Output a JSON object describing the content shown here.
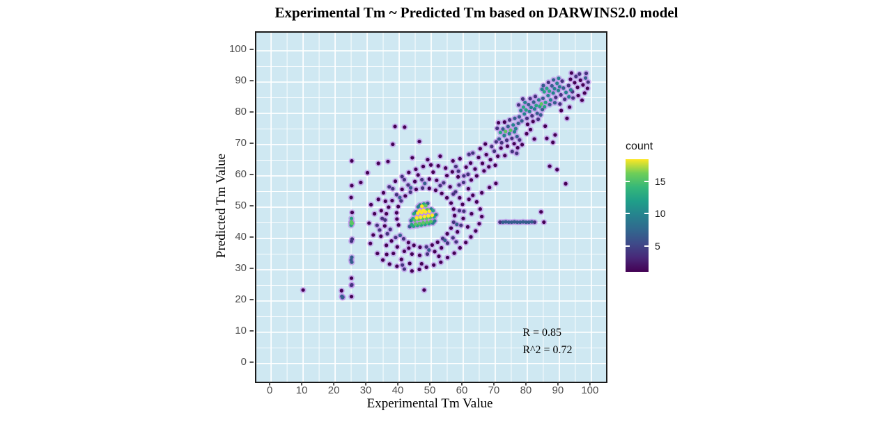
{
  "title": "Experimental Tm ~ Predicted Tm based on DARWINS2.0 model",
  "chart_data": {
    "type": "scatter",
    "subtype": "density-colored scatter (geom_pointdensity style)",
    "title": "Experimental Tm ~ Predicted Tm based on DARWINS2.0 model",
    "xlabel": "Experimental Tm Value",
    "ylabel": "Predicted Tm Value",
    "xlim": [
      -4.6,
      104.6
    ],
    "ylim": [
      -5.8,
      105.8
    ],
    "x_ticks": [
      0,
      10,
      20,
      30,
      40,
      50,
      60,
      70,
      80,
      90,
      100
    ],
    "y_ticks": [
      0,
      10,
      20,
      30,
      40,
      50,
      60,
      70,
      80,
      90,
      100
    ],
    "minor_ticks": [
      5,
      15,
      25,
      35,
      45,
      55,
      65,
      75,
      85,
      95
    ],
    "grid": "white major+minor gridlines on lightblue panel",
    "legend": {
      "title": "count",
      "position": "right",
      "colormap": "viridis",
      "ticks": [
        5,
        10,
        15
      ],
      "range": [
        1,
        18.4
      ]
    },
    "annotations": [
      {
        "text": "R = 0.85",
        "x": 79,
        "y": 9
      },
      {
        "text": "R^2 = 0.72",
        "x": 79,
        "y": 3.5
      }
    ],
    "points": [
      [
        31.2,
        50.8
      ],
      [
        30.6,
        44.9
      ],
      [
        31.9,
        41.1
      ],
      [
        31.0,
        38.4
      ],
      [
        33.2,
        35.2
      ],
      [
        34.9,
        33.1
      ],
      [
        37.0,
        31.8
      ],
      [
        39.3,
        31.1
      ],
      [
        41.6,
        30.2
      ],
      [
        44.0,
        29.6
      ],
      [
        46.3,
        30.1
      ],
      [
        48.5,
        30.8
      ],
      [
        50.8,
        31.5
      ],
      [
        53.0,
        32.4
      ],
      [
        55.1,
        33.9
      ],
      [
        57.2,
        35.3
      ],
      [
        59.0,
        37.0
      ],
      [
        60.8,
        38.7
      ],
      [
        62.4,
        40.5
      ],
      [
        63.9,
        42.4
      ],
      [
        65.0,
        44.7
      ],
      [
        65.8,
        47.0
      ],
      [
        65.3,
        49.4
      ],
      [
        64.2,
        51.7
      ],
      [
        63.0,
        53.8
      ],
      [
        61.6,
        55.9
      ],
      [
        60.1,
        57.9
      ],
      [
        58.4,
        59.7
      ],
      [
        56.6,
        61.3
      ],
      [
        54.5,
        62.5
      ],
      [
        52.2,
        63.2
      ],
      [
        49.9,
        63.5
      ],
      [
        47.5,
        63.0
      ],
      [
        45.2,
        62.1
      ],
      [
        43.0,
        61.1
      ],
      [
        40.9,
        59.8
      ],
      [
        38.8,
        58.3
      ],
      [
        36.9,
        56.5
      ],
      [
        35.1,
        54.6
      ],
      [
        33.5,
        52.5
      ],
      [
        32.3,
        47.9
      ],
      [
        33.1,
        44.2
      ],
      [
        34.3,
        40.7
      ],
      [
        36.0,
        37.8
      ],
      [
        38.2,
        35.2
      ],
      [
        40.7,
        33.3
      ],
      [
        43.3,
        32.0
      ],
      [
        34.4,
        48.9
      ],
      [
        33.9,
        42.7
      ],
      [
        36.1,
        34.9
      ],
      [
        41.0,
        31.5
      ],
      [
        47.0,
        31.9
      ],
      [
        52.4,
        34.3
      ],
      [
        57.8,
        38.9
      ],
      [
        61.4,
        43.7
      ],
      [
        62.6,
        47.9
      ],
      [
        61.8,
        52.5
      ],
      [
        58.7,
        57.1
      ],
      [
        54.9,
        60.1
      ],
      [
        50.6,
        61.2
      ],
      [
        45.9,
        60.3
      ],
      [
        41.6,
        58.8
      ],
      [
        38.0,
        55.9
      ],
      [
        35.7,
        51.9
      ],
      [
        34.7,
        46.4
      ],
      [
        37.2,
        42.9
      ],
      [
        38.9,
        40.3
      ],
      [
        43.0,
        36.9
      ],
      [
        49.3,
        36.3
      ],
      [
        54.3,
        39.4
      ],
      [
        58.0,
        44.5
      ],
      [
        58.8,
        48.9
      ],
      [
        56.9,
        54.2
      ],
      [
        52.8,
        56.9
      ],
      [
        48.0,
        57.6
      ],
      [
        43.6,
        56.2
      ],
      [
        40.2,
        53.1
      ],
      [
        35.5,
        44.0
      ],
      [
        36.3,
        41.5
      ],
      [
        37.6,
        39.2
      ],
      [
        39.4,
        37.3
      ],
      [
        41.6,
        35.9
      ],
      [
        44.0,
        35.0
      ],
      [
        46.4,
        34.6
      ],
      [
        48.8,
        35.0
      ],
      [
        51.1,
        35.8
      ],
      [
        53.2,
        37.0
      ],
      [
        55.1,
        38.5
      ],
      [
        56.8,
        40.2
      ],
      [
        58.2,
        42.1
      ],
      [
        59.3,
        44.2
      ],
      [
        60.0,
        46.4
      ],
      [
        60.2,
        48.7
      ],
      [
        59.8,
        50.9
      ],
      [
        58.9,
        53.0
      ],
      [
        57.6,
        54.9
      ],
      [
        55.9,
        56.5
      ],
      [
        53.9,
        57.8
      ],
      [
        51.7,
        58.6
      ],
      [
        49.4,
        59.0
      ],
      [
        47.1,
        58.8
      ],
      [
        44.9,
        58.2
      ],
      [
        42.8,
        57.1
      ],
      [
        40.9,
        55.7
      ],
      [
        39.2,
        54.0
      ],
      [
        37.8,
        52.1
      ],
      [
        36.7,
        50.0
      ],
      [
        36.0,
        47.9
      ],
      [
        35.6,
        45.9
      ],
      [
        40.3,
        41.0
      ],
      [
        41.4,
        39.9
      ],
      [
        42.9,
        38.7
      ],
      [
        44.6,
        37.8
      ],
      [
        46.5,
        37.2
      ],
      [
        48.5,
        37.3
      ],
      [
        50.3,
        37.9
      ],
      [
        52.0,
        38.8
      ],
      [
        53.6,
        40.0
      ],
      [
        55.0,
        41.5
      ],
      [
        56.2,
        43.3
      ],
      [
        57.0,
        45.2
      ],
      [
        57.3,
        47.3
      ],
      [
        57.0,
        49.4
      ],
      [
        56.2,
        51.3
      ],
      [
        54.9,
        53.0
      ],
      [
        53.3,
        54.4
      ],
      [
        51.4,
        55.4
      ],
      [
        49.4,
        56.0
      ],
      [
        47.3,
        56.1
      ],
      [
        45.3,
        55.7
      ],
      [
        43.5,
        54.8
      ],
      [
        41.9,
        53.6
      ],
      [
        40.6,
        52.0
      ],
      [
        39.7,
        50.2
      ],
      [
        39.2,
        48.2
      ],
      [
        39.3,
        46.2
      ],
      [
        39.8,
        44.3
      ],
      [
        43.3,
        43.8
      ],
      [
        43.9,
        44.4
      ],
      [
        44.5,
        43.9
      ],
      [
        45.1,
        44.6
      ],
      [
        45.7,
        44.1
      ],
      [
        46.3,
        44.8
      ],
      [
        46.9,
        44.3
      ],
      [
        47.5,
        45.0
      ],
      [
        48.1,
        44.5
      ],
      [
        48.7,
        45.2
      ],
      [
        49.3,
        44.7
      ],
      [
        49.9,
        45.4
      ],
      [
        50.5,
        44.9
      ],
      [
        51.1,
        45.6
      ],
      [
        43.7,
        45.7
      ],
      [
        44.3,
        46.3
      ],
      [
        44.9,
        45.9
      ],
      [
        45.5,
        46.6
      ],
      [
        46.1,
        46.1
      ],
      [
        46.7,
        46.8
      ],
      [
        47.3,
        46.3
      ],
      [
        47.9,
        47.0
      ],
      [
        48.5,
        46.5
      ],
      [
        49.1,
        47.2
      ],
      [
        49.7,
        46.7
      ],
      [
        50.3,
        47.4
      ],
      [
        50.9,
        46.9
      ],
      [
        51.5,
        47.6
      ],
      [
        44.6,
        47.9
      ],
      [
        45.2,
        48.5
      ],
      [
        45.8,
        48.1
      ],
      [
        46.4,
        48.8
      ],
      [
        47.0,
        48.3
      ],
      [
        47.6,
        49.0
      ],
      [
        48.2,
        48.5
      ],
      [
        48.8,
        49.2
      ],
      [
        49.4,
        48.7
      ],
      [
        50.0,
        49.4
      ],
      [
        50.6,
        48.9
      ],
      [
        45.9,
        50.1
      ],
      [
        46.5,
        50.7
      ],
      [
        47.1,
        50.3
      ],
      [
        47.7,
        51.0
      ],
      [
        48.3,
        50.5
      ],
      [
        48.9,
        51.2
      ],
      [
        60.9,
        62.8
      ],
      [
        62.3,
        64.1
      ],
      [
        63.7,
        62.2
      ],
      [
        64.8,
        65.9
      ],
      [
        66.0,
        64.0
      ],
      [
        67.2,
        66.8
      ],
      [
        68.5,
        65.2
      ],
      [
        69.7,
        67.9
      ],
      [
        70.8,
        66.3
      ],
      [
        65.3,
        68.7
      ],
      [
        66.9,
        70.2
      ],
      [
        68.9,
        69.4
      ],
      [
        70.3,
        70.9
      ],
      [
        71.8,
        68.9
      ],
      [
        63.0,
        67.3
      ],
      [
        61.5,
        60.5
      ],
      [
        64.2,
        60.0
      ],
      [
        66.5,
        61.6
      ],
      [
        68.0,
        62.9
      ],
      [
        70.0,
        63.4
      ],
      [
        71.2,
        71.8
      ],
      [
        72.0,
        70.6
      ],
      [
        72.8,
        72.9
      ],
      [
        73.6,
        71.4
      ],
      [
        74.4,
        73.5
      ],
      [
        75.2,
        72.0
      ],
      [
        76.0,
        74.1
      ],
      [
        76.8,
        72.6
      ],
      [
        71.6,
        73.9
      ],
      [
        72.4,
        75.0
      ],
      [
        73.2,
        74.2
      ],
      [
        74.0,
        75.8
      ],
      [
        74.8,
        74.6
      ],
      [
        75.6,
        76.3
      ],
      [
        76.4,
        75.1
      ],
      [
        77.2,
        76.8
      ],
      [
        72.9,
        77.2
      ],
      [
        74.5,
        77.9
      ],
      [
        76.1,
        78.4
      ],
      [
        70.6,
        75.2
      ],
      [
        71.0,
        77.0
      ],
      [
        73.8,
        69.5
      ],
      [
        75.9,
        70.3
      ],
      [
        77.6,
        71.5
      ],
      [
        77.0,
        69.0
      ],
      [
        77.5,
        78.9
      ],
      [
        78.3,
        77.6
      ],
      [
        79.1,
        79.8
      ],
      [
        79.9,
        78.4
      ],
      [
        80.7,
        80.6
      ],
      [
        81.5,
        79.2
      ],
      [
        82.3,
        81.4
      ],
      [
        83.1,
        80.0
      ],
      [
        83.9,
        82.2
      ],
      [
        78.0,
        80.9
      ],
      [
        78.8,
        82.0
      ],
      [
        79.6,
        81.1
      ],
      [
        80.4,
        82.8
      ],
      [
        81.2,
        81.9
      ],
      [
        82.0,
        83.6
      ],
      [
        82.8,
        82.5
      ],
      [
        83.6,
        84.3
      ],
      [
        79.3,
        83.5
      ],
      [
        80.9,
        84.7
      ],
      [
        82.5,
        85.4
      ],
      [
        77.3,
        82.7
      ],
      [
        78.6,
        84.6
      ],
      [
        81.8,
        77.4
      ],
      [
        83.4,
        78.1
      ],
      [
        84.2,
        79.5
      ],
      [
        84.7,
        81.2
      ],
      [
        84.4,
        83.0
      ],
      [
        80.1,
        76.5
      ],
      [
        84.9,
        84.8
      ],
      [
        85.7,
        83.5
      ],
      [
        86.5,
        85.7
      ],
      [
        87.3,
        84.3
      ],
      [
        88.1,
        86.5
      ],
      [
        88.9,
        85.1
      ],
      [
        89.7,
        87.3
      ],
      [
        90.5,
        85.9
      ],
      [
        91.3,
        88.1
      ],
      [
        92.1,
        86.7
      ],
      [
        85.3,
        86.9
      ],
      [
        86.1,
        88.0
      ],
      [
        86.9,
        87.1
      ],
      [
        87.7,
        88.8
      ],
      [
        88.5,
        87.9
      ],
      [
        89.3,
        89.6
      ],
      [
        90.1,
        88.5
      ],
      [
        90.9,
        90.3
      ],
      [
        86.6,
        89.9
      ],
      [
        88.2,
        90.7
      ],
      [
        89.8,
        91.2
      ],
      [
        85.0,
        88.9
      ],
      [
        92.9,
        88.9
      ],
      [
        93.6,
        87.5
      ],
      [
        91.7,
        84.5
      ],
      [
        93.0,
        85.3
      ],
      [
        94.1,
        86.9
      ],
      [
        84.6,
        87.7
      ],
      [
        87.0,
        82.8
      ],
      [
        88.6,
        83.4
      ],
      [
        90.2,
        83.0
      ],
      [
        85.4,
        82.1
      ],
      [
        94.8,
        89.8
      ],
      [
        95.7,
        88.3
      ],
      [
        96.6,
        90.6
      ],
      [
        97.4,
        89.1
      ],
      [
        98.2,
        91.3
      ],
      [
        95.2,
        91.8
      ],
      [
        96.3,
        92.6
      ],
      [
        93.5,
        90.9
      ],
      [
        97.9,
        86.5
      ],
      [
        98.8,
        88.0
      ],
      [
        94.3,
        84.9
      ],
      [
        95.9,
        85.7
      ],
      [
        97.1,
        84.2
      ],
      [
        93.8,
        92.9
      ],
      [
        99.0,
        90.0
      ],
      [
        98.4,
        92.8
      ],
      [
        92.4,
        78.4
      ],
      [
        88.7,
        73.1
      ],
      [
        86.1,
        72.0
      ],
      [
        88.0,
        70.7
      ],
      [
        82.2,
        71.8
      ],
      [
        87.0,
        63.1
      ],
      [
        89.3,
        62.0
      ],
      [
        92.0,
        57.5
      ],
      [
        84.3,
        48.5
      ],
      [
        79.8,
        73.5
      ],
      [
        85.6,
        75.9
      ],
      [
        90.6,
        80.9
      ],
      [
        93.2,
        82.0
      ],
      [
        81.0,
        74.8
      ],
      [
        75.3,
        67.8
      ],
      [
        73.0,
        66.5
      ],
      [
        78.4,
        70.0
      ],
      [
        76.7,
        67.2
      ],
      [
        71.5,
        45.2
      ],
      [
        72.4,
        45.2
      ],
      [
        73.3,
        45.3
      ],
      [
        74.2,
        45.2
      ],
      [
        75.1,
        45.2
      ],
      [
        76.0,
        45.3
      ],
      [
        76.9,
        45.2
      ],
      [
        77.8,
        45.2
      ],
      [
        78.7,
        45.3
      ],
      [
        79.6,
        45.2
      ],
      [
        80.5,
        45.2
      ],
      [
        81.4,
        45.3
      ],
      [
        82.3,
        45.2
      ],
      [
        85.2,
        45.2
      ],
      [
        25.2,
        64.8
      ],
      [
        25.2,
        56.9
      ],
      [
        25.0,
        53.1
      ],
      [
        25.3,
        48.3
      ],
      [
        25.1,
        46.4
      ],
      [
        25.2,
        45.1
      ],
      [
        25.0,
        44.2
      ],
      [
        25.3,
        39.8
      ],
      [
        25.1,
        39.1
      ],
      [
        25.2,
        34.0
      ],
      [
        25.0,
        33.1
      ],
      [
        25.2,
        32.4
      ],
      [
        25.1,
        27.3
      ],
      [
        25.2,
        25.2
      ],
      [
        25.1,
        21.4
      ],
      [
        10.0,
        23.5
      ],
      [
        22.0,
        23.3
      ],
      [
        22.4,
        21.2
      ],
      [
        47.8,
        23.5
      ],
      [
        41.7,
        75.6
      ],
      [
        46.3,
        71.0
      ],
      [
        38.7,
        75.8
      ],
      [
        38.0,
        70.1
      ],
      [
        36.5,
        64.6
      ],
      [
        30.1,
        61.0
      ],
      [
        28.0,
        57.9
      ],
      [
        33.5,
        64.0
      ],
      [
        44.1,
        65.8
      ],
      [
        48.9,
        65.2
      ],
      [
        52.8,
        66.3
      ],
      [
        56.8,
        64.8
      ],
      [
        58.5,
        61.5
      ],
      [
        60.2,
        60.0
      ],
      [
        59.0,
        65.5
      ],
      [
        61.8,
        66.9
      ],
      [
        57.7,
        63.0
      ],
      [
        65.8,
        54.6
      ],
      [
        68.2,
        56.3
      ],
      [
        70.2,
        57.6
      ],
      [
        62.5,
        58.7
      ],
      [
        25.0,
        45.0
      ],
      [
        25.3,
        44.8
      ],
      [
        25.1,
        45.3
      ],
      [
        22.1,
        21.5
      ],
      [
        22.3,
        21.1
      ],
      [
        25.1,
        25.0
      ]
    ]
  },
  "styles": {
    "panel_bg": "#cfe8f2",
    "grid_color": "#ffffff",
    "panel_border": "#1a1a1a",
    "tick_color": "#333333",
    "tick_label_color": "#4d4d4d",
    "point_halo": "#b97ce7",
    "viridis_stops": [
      [
        0,
        "#440154"
      ],
      [
        0.125,
        "#482878"
      ],
      [
        0.25,
        "#3e4a89"
      ],
      [
        0.375,
        "#31688e"
      ],
      [
        0.5,
        "#26828e"
      ],
      [
        0.625,
        "#1f9e89"
      ],
      [
        0.75,
        "#35b779"
      ],
      [
        0.875,
        "#6ece58"
      ],
      [
        1,
        "#fde725"
      ]
    ]
  }
}
